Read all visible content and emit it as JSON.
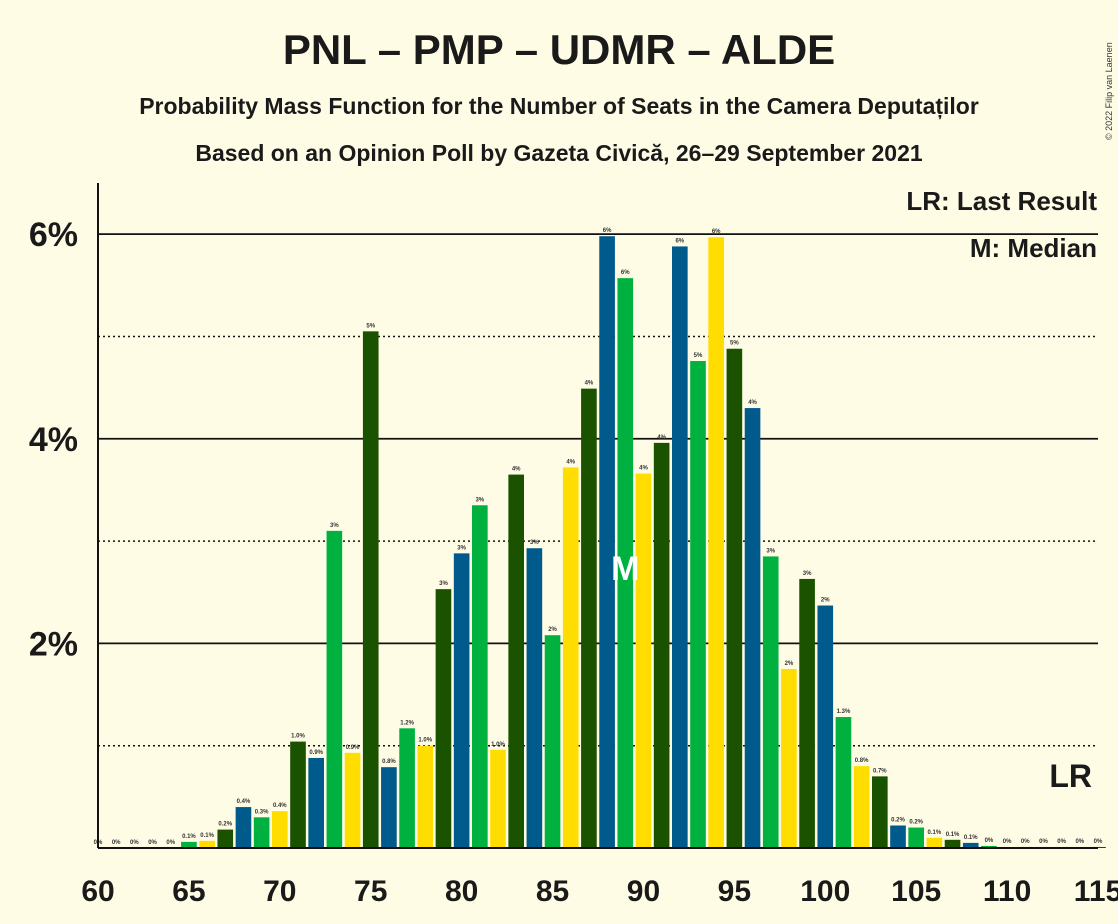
{
  "title": "PNL – PMP – UDMR – ALDE",
  "subtitle1": "Probability Mass Function for the Number of Seats in the Camera Deputaților",
  "subtitle2": "Based on an Opinion Poll by Gazeta Civică, 26–29 September 2021",
  "copyright": "© 2022 Filip van Laenen",
  "legend": {
    "last_result": "LR: Last Result",
    "median": "M: Median"
  },
  "colors": {
    "background": "#FFFCE6",
    "blue": "#005A8C",
    "green": "#00B140",
    "yellow": "#FFDD00",
    "darkgreen": "#1A5200"
  },
  "chart_data": {
    "type": "bar",
    "xlabel": "",
    "ylabel": "",
    "ylim": [
      0,
      6.5
    ],
    "xlim": [
      60,
      115
    ],
    "x_ticks": [
      60,
      65,
      70,
      75,
      80,
      85,
      90,
      95,
      100,
      105,
      110,
      115
    ],
    "y_ticks": [
      {
        "value": 2,
        "label": "2%"
      },
      {
        "value": 4,
        "label": "4%"
      },
      {
        "value": 6,
        "label": "6%"
      }
    ],
    "grid": "solid lines at each labelled percent, dotted lines midway",
    "legend_position": "top-right",
    "median": 89,
    "median_label": "M",
    "last_result_label": "LR",
    "last_result": 114,
    "seats": [
      60,
      61,
      62,
      63,
      64,
      65,
      66,
      67,
      68,
      69,
      70,
      71,
      72,
      73,
      74,
      75,
      76,
      77,
      78,
      79,
      80,
      81,
      82,
      83,
      84,
      85,
      86,
      87,
      88,
      89,
      90,
      91,
      92,
      93,
      94,
      95,
      96,
      97,
      98,
      99,
      100,
      101,
      102,
      103,
      104,
      105,
      106,
      107,
      108,
      109,
      110,
      111,
      112,
      113,
      114,
      115
    ],
    "values": [
      0,
      0,
      0,
      0,
      0,
      0.06,
      0.07,
      0.18,
      0.4,
      0.3,
      0.36,
      1.04,
      0.88,
      3.1,
      0.93,
      5.05,
      0.79,
      1.17,
      1.0,
      2.53,
      2.88,
      3.35,
      0.96,
      3.65,
      2.93,
      2.08,
      3.72,
      4.49,
      5.98,
      5.57,
      3.66,
      3.96,
      5.88,
      4.76,
      5.97,
      4.88,
      4.3,
      2.85,
      1.75,
      2.63,
      2.37,
      1.28,
      0.8,
      0.7,
      0.22,
      0.2,
      0.1,
      0.08,
      0.05,
      0.02,
      0.01,
      0.01,
      0.01,
      0.01,
      0.01,
      0.01
    ],
    "labels": [
      "0%",
      "0%",
      "0%",
      "0%",
      "0%",
      "0.1%",
      "0.1%",
      "0.2%",
      "0.4%",
      "0.3%",
      "0.4%",
      "1.0%",
      "0.9%",
      "3%",
      "0.9%",
      "5%",
      "0.8%",
      "1.2%",
      "1.0%",
      "3%",
      "3%",
      "3%",
      "1.0%",
      "4%",
      "3%",
      "2%",
      "4%",
      "4%",
      "6%",
      "6%",
      "4%",
      "4%",
      "6%",
      "5%",
      "6%",
      "5%",
      "4%",
      "3%",
      "2%",
      "3%",
      "2%",
      "1.3%",
      "0.8%",
      "0.7%",
      "0.2%",
      "0.2%",
      "0.1%",
      "0.1%",
      "0.1%",
      "0%",
      "0%",
      "0%",
      "0%",
      "0%",
      "0%",
      "0%"
    ],
    "bar_colors": [
      "blue",
      "green",
      "yellow",
      "darkgreen"
    ]
  }
}
